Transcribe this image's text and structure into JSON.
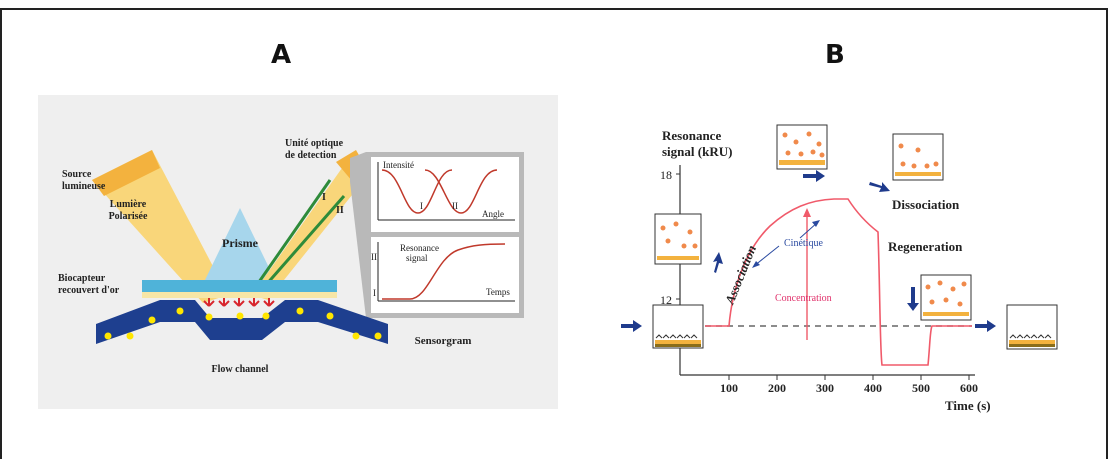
{
  "panels": {
    "a": {
      "label": "A",
      "texts": {
        "source": [
          "Source",
          "lumineuse"
        ],
        "light": [
          "Lumière",
          "Polarisée"
        ],
        "prism": "Prisme",
        "detector": [
          "Unité optique",
          "de detection"
        ],
        "biosensor": [
          "Biocapteur",
          "recouvert d'or"
        ],
        "flow": "Flow channel",
        "sensorgram": "Sensorgram",
        "beam_I": "I",
        "beam_II": "II"
      },
      "plot_top": {
        "ylabel": "Intensité",
        "xlabel": "Angle",
        "label_I": "I",
        "label_II": "II"
      },
      "plot_bottom": {
        "ylabel": [
          "Resonance",
          "signal"
        ],
        "xlabel": "Temps",
        "label_I": "I",
        "label_II": "II"
      }
    },
    "b": {
      "label": "B",
      "ylabel": [
        "Resonance",
        "signal (kRU)"
      ],
      "xlabel": "Time  (s)",
      "yticks": [
        "18",
        "12"
      ],
      "xticks": [
        "100",
        "200",
        "300",
        "400",
        "500",
        "600"
      ],
      "association": "Association",
      "dissociation": "Dissociation",
      "regeneration": "Regeneration",
      "cinetique": "Cinétique",
      "concentration": "Concentration"
    }
  },
  "colors": {
    "curve": "#f05a6a",
    "arrow": "#1f3b8c",
    "cone": "#f7c45a",
    "prism": "#9fd3ea",
    "channel": "#1e3f8f",
    "dots": "#ffe600",
    "antibody": "#d8262d",
    "beam": "#2e8b3a",
    "concentration_text": "#e0306a",
    "cinetique_text": "#2a4aa0"
  }
}
